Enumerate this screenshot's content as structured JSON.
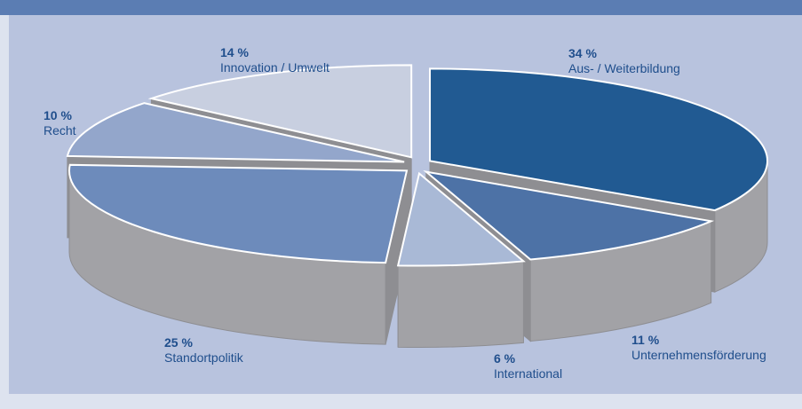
{
  "chart_data": {
    "type": "pie",
    "slices": [
      {
        "label": "Aus- / Weiterbildung",
        "value": 34,
        "value_text": "34 %",
        "color": "#215a92"
      },
      {
        "label": "Unternehmensförderung",
        "value": 11,
        "value_text": "11 %",
        "color": "#4d72a6"
      },
      {
        "label": "International",
        "value": 6,
        "value_text": "6 %",
        "color": "#a9b9d6"
      },
      {
        "label": "Standortpolitik",
        "value": 25,
        "value_text": "25 %",
        "color": "#6d8bbb"
      },
      {
        "label": "Recht",
        "value": 10,
        "value_text": "10 %",
        "color": "#93a6cb"
      },
      {
        "label": "Innovation / Umwelt",
        "value": 14,
        "value_text": "14 %",
        "color": "#c8cfe0"
      }
    ],
    "side_color": "#a2a2a6",
    "side_shadow_color": "#8e8e92"
  }
}
